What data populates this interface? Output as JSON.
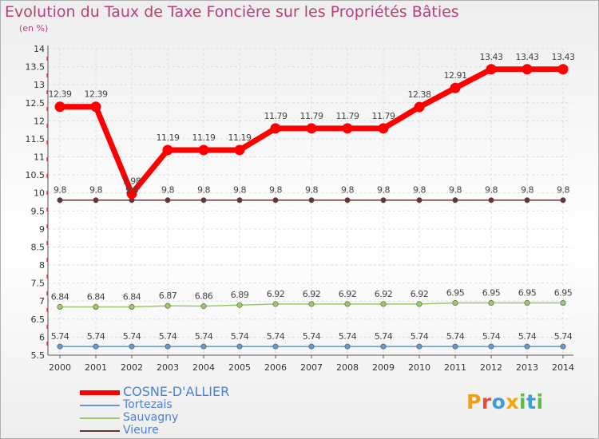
{
  "title": "Evolution du Taux de Taxe Foncière sur les Propriétés Bâties",
  "unit": "(en %)",
  "logo": "Proxiti",
  "chart_data": {
    "type": "line",
    "title": "Evolution du Taux de Taxe Foncière sur les Propriétés Bâties",
    "ylabel": "(en %)",
    "xlabel": "",
    "x": [
      "2000",
      "2001",
      "2002",
      "2003",
      "2004",
      "2005",
      "2006",
      "2007",
      "2008",
      "2009",
      "2010",
      "2011",
      "2012",
      "2013",
      "2014"
    ],
    "ylim": [
      5.5,
      14
    ],
    "yticks": [
      "5.5",
      "6",
      "6.5",
      "7",
      "7.5",
      "8",
      "8.5",
      "9",
      "9.5",
      "10",
      "10.5",
      "11",
      "11.5",
      "12",
      "12.5",
      "13",
      "13.5",
      "14"
    ],
    "series": [
      {
        "name": "COSNE-D'ALLIER",
        "color": "#ff0000",
        "values": [
          12.39,
          12.39,
          9.98,
          11.19,
          11.19,
          11.19,
          11.79,
          11.79,
          11.79,
          11.79,
          12.38,
          12.91,
          13.43,
          13.43,
          13.43
        ],
        "labels": [
          "12.39",
          "12.39",
          "9.98",
          "11.19",
          "11.19",
          "11.19",
          "11.79",
          "11.79",
          "11.79",
          "11.79",
          "12.38",
          "12.91",
          "13.43",
          "13.43",
          "13.43"
        ]
      },
      {
        "name": "Tortezais",
        "color": "#6699cc",
        "values": [
          5.74,
          5.74,
          5.74,
          5.74,
          5.74,
          5.74,
          5.74,
          5.74,
          5.74,
          5.74,
          5.74,
          5.74,
          5.74,
          5.74,
          5.74
        ],
        "labels": [
          "5.74",
          "5.74",
          "5.74",
          "5.74",
          "5.74",
          "5.74",
          "5.74",
          "5.74",
          "5.74",
          "5.74",
          "5.74",
          "5.74",
          "5.74",
          "5.74",
          "5.74"
        ]
      },
      {
        "name": "Sauvagny",
        "color": "#99cc66",
        "values": [
          6.84,
          6.84,
          6.84,
          6.87,
          6.86,
          6.89,
          6.92,
          6.92,
          6.92,
          6.92,
          6.92,
          6.95,
          6.95,
          6.95,
          6.95
        ],
        "labels": [
          "6.84",
          "6.84",
          "6.84",
          "6.87",
          "6.86",
          "6.89",
          "6.92",
          "6.92",
          "6.92",
          "6.92",
          "6.92",
          "6.95",
          "6.95",
          "6.95",
          "6.95"
        ]
      },
      {
        "name": "Vieure",
        "color": "#663333",
        "values": [
          9.8,
          9.8,
          9.8,
          9.8,
          9.8,
          9.8,
          9.8,
          9.8,
          9.8,
          9.8,
          9.8,
          9.8,
          9.8,
          9.8,
          9.8
        ],
        "labels": [
          "9.8",
          "9.8",
          "9.8",
          "9.8",
          "9.8",
          "9.8",
          "9.8",
          "9.8",
          "9.8",
          "9.8",
          "9.8",
          "9.8",
          "9.8",
          "9.8",
          "9.8"
        ]
      }
    ]
  }
}
